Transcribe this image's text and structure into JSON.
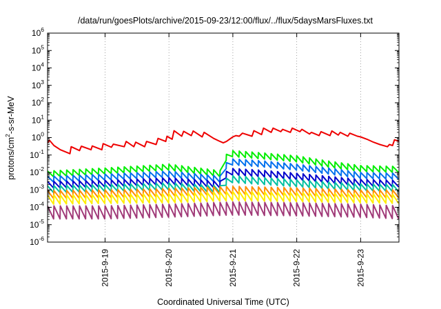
{
  "chart_data": {
    "type": "line",
    "title": "/data/run/goesPlots/archive/2015-09-23/12:00/flux/../flux/5daysMarsFluxes.txt",
    "xlabel": "Coordinated Universal Time (UTC)",
    "ylabel_parts": [
      "protons/cm",
      "2",
      "-s-sr-MeV"
    ],
    "y_scale": "log",
    "ylim": [
      1e-06,
      1000000.0
    ],
    "xlim_days": [
      18.1,
      23.6
    ],
    "x_ticks": [
      {
        "day": 19,
        "label": "2015-9-19"
      },
      {
        "day": 20,
        "label": "2015-9-20"
      },
      {
        "day": 21,
        "label": "2015-9-21"
      },
      {
        "day": 22,
        "label": "2015-9-22"
      },
      {
        "day": 23,
        "label": "2015-9-23"
      }
    ],
    "y_ticks": [
      {
        "base": "10",
        "exp": "-6",
        "value": 1e-06
      },
      {
        "base": "10",
        "exp": "-5",
        "value": 1e-05
      },
      {
        "base": "10",
        "exp": "-4",
        "value": 0.0001
      },
      {
        "base": "10",
        "exp": "-3",
        "value": 0.001
      },
      {
        "base": "10",
        "exp": "-2",
        "value": 0.01
      },
      {
        "base": "10",
        "exp": "-1",
        "value": 0.1
      },
      {
        "base": "10",
        "exp": "0",
        "value": 1
      },
      {
        "base": "10",
        "exp": "1",
        "value": 10
      },
      {
        "base": "10",
        "exp": "2",
        "value": 100
      },
      {
        "base": "10",
        "exp": "3",
        "value": 1000
      },
      {
        "base": "10",
        "exp": "4",
        "value": 10000
      },
      {
        "base": "10",
        "exp": "5",
        "value": 100000
      },
      {
        "base": "10",
        "exp": "6",
        "value": 1000000
      }
    ],
    "grid": "vertical dotted at day ticks",
    "series": [
      {
        "color": "#ee0000",
        "points": [
          [
            18.1,
            0.5
          ],
          [
            18.13,
            0.7
          ],
          [
            18.2,
            0.35
          ],
          [
            18.3,
            0.2
          ],
          [
            18.45,
            0.12
          ],
          [
            18.47,
            0.3
          ],
          [
            18.6,
            0.18
          ],
          [
            18.63,
            0.32
          ],
          [
            18.78,
            0.2
          ],
          [
            18.8,
            0.33
          ],
          [
            18.95,
            0.2
          ],
          [
            18.97,
            0.45
          ],
          [
            19.1,
            0.28
          ],
          [
            19.13,
            0.42
          ],
          [
            19.3,
            0.3
          ],
          [
            19.33,
            0.6
          ],
          [
            19.45,
            0.3
          ],
          [
            19.48,
            0.55
          ],
          [
            19.62,
            0.3
          ],
          [
            19.65,
            0.6
          ],
          [
            19.8,
            0.4
          ],
          [
            19.83,
            0.9
          ],
          [
            19.95,
            0.6
          ],
          [
            19.97,
            1.2
          ],
          [
            20.05,
            0.8
          ],
          [
            20.08,
            2.5
          ],
          [
            20.2,
            1.2
          ],
          [
            20.23,
            2.3
          ],
          [
            20.35,
            1.3
          ],
          [
            20.38,
            2.4
          ],
          [
            20.52,
            1.1
          ],
          [
            20.55,
            2.0
          ],
          [
            20.7,
            0.9
          ],
          [
            20.8,
            0.6
          ],
          [
            20.85,
            0.5
          ],
          [
            20.9,
            0.6
          ],
          [
            21.0,
            1.1
          ],
          [
            21.05,
            1.3
          ],
          [
            21.1,
            1.2
          ],
          [
            21.15,
            1.8
          ],
          [
            21.3,
            1.2
          ],
          [
            21.33,
            2.5
          ],
          [
            21.45,
            1.5
          ],
          [
            21.48,
            3.5
          ],
          [
            21.6,
            2.0
          ],
          [
            21.63,
            3.5
          ],
          [
            21.75,
            2.2
          ],
          [
            21.78,
            3.0
          ],
          [
            21.9,
            2.0
          ],
          [
            21.93,
            3.5
          ],
          [
            22.05,
            2.2
          ],
          [
            22.08,
            3.0
          ],
          [
            22.2,
            1.6
          ],
          [
            22.23,
            2.0
          ],
          [
            22.35,
            1.3
          ],
          [
            22.38,
            2.2
          ],
          [
            22.52,
            1.3
          ],
          [
            22.55,
            2.4
          ],
          [
            22.65,
            1.4
          ],
          [
            22.68,
            2.0
          ],
          [
            22.8,
            1.2
          ],
          [
            22.83,
            1.8
          ],
          [
            22.95,
            1.2
          ],
          [
            23.0,
            1.1
          ],
          [
            23.1,
            0.8
          ],
          [
            23.2,
            0.55
          ],
          [
            23.3,
            0.4
          ],
          [
            23.42,
            0.3
          ],
          [
            23.45,
            0.4
          ],
          [
            23.5,
            0.35
          ],
          [
            23.53,
            0.75
          ],
          [
            23.6,
            0.6
          ]
        ]
      },
      {
        "color": "#00ee00",
        "type": "sawtooth",
        "x0": 18.1,
        "x1": 23.6,
        "period": 0.1,
        "env": [
          [
            18.1,
            0.012
          ],
          [
            19.0,
            0.018
          ],
          [
            20.0,
            0.03
          ],
          [
            20.85,
            0.012
          ],
          [
            20.86,
            0.09
          ],
          [
            21.0,
            0.18
          ],
          [
            21.5,
            0.13
          ],
          [
            22.0,
            0.09
          ],
          [
            22.5,
            0.045
          ],
          [
            23.0,
            0.025
          ],
          [
            23.6,
            0.022
          ]
        ],
        "drop": 0.45
      },
      {
        "color": "#0070ee",
        "type": "sawtooth",
        "x0": 18.1,
        "x1": 23.6,
        "period": 0.1,
        "env": [
          [
            18.1,
            0.006
          ],
          [
            19.0,
            0.008
          ],
          [
            20.0,
            0.012
          ],
          [
            20.85,
            0.006
          ],
          [
            20.86,
            0.03
          ],
          [
            21.0,
            0.06
          ],
          [
            21.5,
            0.045
          ],
          [
            22.0,
            0.03
          ],
          [
            22.5,
            0.018
          ],
          [
            23.0,
            0.01
          ],
          [
            23.6,
            0.009
          ]
        ],
        "drop": 0.45
      },
      {
        "color": "#0000cc",
        "type": "sawtooth",
        "x0": 18.1,
        "x1": 23.6,
        "period": 0.1,
        "env": [
          [
            18.1,
            0.003
          ],
          [
            19.0,
            0.0035
          ],
          [
            20.0,
            0.005
          ],
          [
            20.85,
            0.003
          ],
          [
            20.86,
            0.01
          ],
          [
            21.0,
            0.017
          ],
          [
            21.5,
            0.013
          ],
          [
            22.0,
            0.009
          ],
          [
            22.5,
            0.006
          ],
          [
            23.0,
            0.004
          ],
          [
            23.6,
            0.0035
          ]
        ],
        "drop": 0.42
      },
      {
        "color": "#00c0a0",
        "type": "sawtooth",
        "x0": 18.1,
        "x1": 23.6,
        "period": 0.1,
        "env": [
          [
            18.1,
            0.0017
          ],
          [
            19.0,
            0.002
          ],
          [
            20.0,
            0.0025
          ],
          [
            20.85,
            0.0017
          ],
          [
            20.86,
            0.004
          ],
          [
            21.0,
            0.0065
          ],
          [
            21.5,
            0.005
          ],
          [
            22.0,
            0.0038
          ],
          [
            22.5,
            0.0028
          ],
          [
            23.0,
            0.0022
          ],
          [
            23.6,
            0.002
          ]
        ],
        "drop": 0.4
      },
      {
        "color": "#ff8c00",
        "type": "sawtooth",
        "x0": 18.1,
        "x1": 23.6,
        "period": 0.1,
        "env": [
          [
            18.1,
            0.0009
          ],
          [
            19.0,
            0.001
          ],
          [
            20.0,
            0.0012
          ],
          [
            21.0,
            0.0016
          ],
          [
            22.0,
            0.0013
          ],
          [
            23.0,
            0.001
          ],
          [
            23.6,
            0.001
          ]
        ],
        "drop": 0.35
      },
      {
        "color": "#ffee00",
        "type": "sawtooth",
        "x0": 18.1,
        "x1": 23.6,
        "period": 0.1,
        "env": [
          [
            18.1,
            0.0005
          ],
          [
            19.0,
            0.00055
          ],
          [
            20.0,
            0.0006
          ],
          [
            21.0,
            0.0008
          ],
          [
            22.0,
            0.0007
          ],
          [
            23.0,
            0.0006
          ],
          [
            23.6,
            0.00055
          ]
        ],
        "drop": 0.3
      },
      {
        "color": "#a03a78",
        "type": "sawtooth",
        "x0": 18.1,
        "x1": 23.6,
        "period": 0.1,
        "env": [
          [
            18.1,
            0.00012
          ],
          [
            19.0,
            0.00012
          ],
          [
            20.0,
            0.00015
          ],
          [
            21.0,
            0.0002
          ],
          [
            22.0,
            0.00018
          ],
          [
            23.0,
            0.00015
          ],
          [
            23.6,
            0.00012
          ]
        ],
        "drop": 0.18
      }
    ]
  }
}
